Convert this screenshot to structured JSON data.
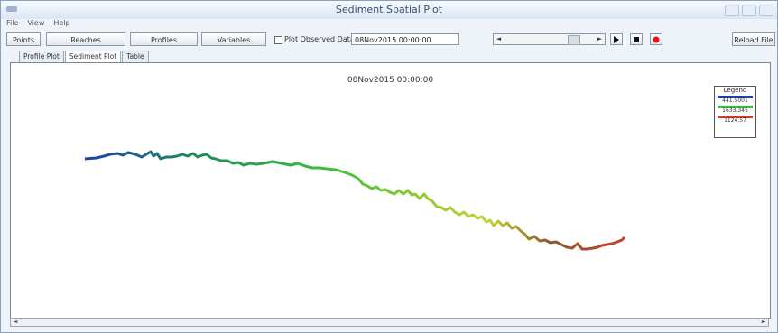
{
  "window": {
    "title": "Sediment Spatial Plot"
  },
  "menu": [
    "File",
    "View",
    "Help"
  ],
  "toolbar": {
    "buttons": [
      "Points",
      "Reaches",
      "Profiles",
      "Variables"
    ],
    "checkbox_label": "Plot Observed Data",
    "date_value": "08Nov2015 00:00:00",
    "reload_label": "Reload File"
  },
  "tabs": [
    "Profile Plot",
    "Sediment Plot",
    "Table"
  ],
  "plot": {
    "title": "08Nov2015 00:00:00",
    "legend": {
      "title": "Legend",
      "items": [
        {
          "label": "441.5001",
          "color": "#1f3fb0"
        },
        {
          "label": "1633.345",
          "color": "#3cbf3c"
        },
        {
          "label": "1124.57",
          "color": "#d23a2a"
        }
      ]
    },
    "colors": {
      "start": "#1f3fb0",
      "mid": "#3cbf3c",
      "mid2": "#c4d23a",
      "end": "#d23a2a"
    }
  }
}
